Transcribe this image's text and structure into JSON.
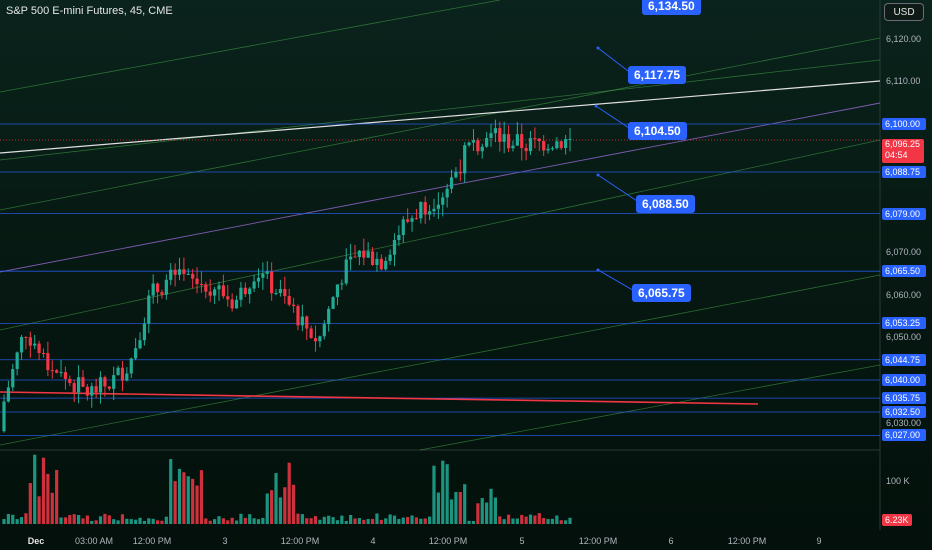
{
  "header": {
    "symbol_title": "S&P 500 E-mini Futures, 45, CME",
    "currency": "USD"
  },
  "price_axis": {
    "ticks": [
      "6,120.00",
      "6,110.00",
      "6,070.00",
      "6,060.00",
      "6,050.00",
      "6,030.00"
    ]
  },
  "levels": [
    {
      "label": "6,100.00",
      "value": 6100.0
    },
    {
      "label": "6,088.75",
      "value": 6088.75
    },
    {
      "label": "6,079.00",
      "value": 6079.0
    },
    {
      "label": "6,065.50",
      "value": 6065.5
    },
    {
      "label": "6,053.25",
      "value": 6053.25
    },
    {
      "label": "6,044.75",
      "value": 6044.75
    },
    {
      "label": "6,040.00",
      "value": 6040.0
    },
    {
      "label": "6,035.75",
      "value": 6035.75
    },
    {
      "label": "6,032.50",
      "value": 6032.5
    },
    {
      "label": "6,027.00",
      "value": 6027.0
    }
  ],
  "last_price": {
    "value": "6,096.25",
    "countdown": "04:54"
  },
  "callouts": [
    {
      "label": "6,134.50",
      "value": 6134.5
    },
    {
      "label": "6,117.75",
      "value": 6117.75
    },
    {
      "label": "6,104.50",
      "value": 6104.5
    },
    {
      "label": "6,088.50",
      "value": 6088.5
    },
    {
      "label": "6,065.75",
      "value": 6065.75
    }
  ],
  "volume_axis": {
    "tick": "100 K",
    "current": "6.23K"
  },
  "time_axis": [
    {
      "label": "Dec",
      "bold": true
    },
    {
      "label": "03:00 AM"
    },
    {
      "label": "12:00 PM"
    },
    {
      "label": "3"
    },
    {
      "label": "12:00 PM"
    },
    {
      "label": "4"
    },
    {
      "label": "12:00 PM"
    },
    {
      "label": "5"
    },
    {
      "label": "12:00 PM"
    },
    {
      "label": "6"
    },
    {
      "label": "12:00 PM"
    },
    {
      "label": "9"
    }
  ],
  "colors": {
    "up": "#22ab94",
    "down": "#f23645",
    "level": "#2962ff",
    "channel": "#4caf50",
    "white_line": "#e0e0e0",
    "purple_line": "#9c6ad8",
    "support_line": "#f23645"
  },
  "chart_data": {
    "type": "candlestick",
    "note_series": "approximate 45-minute closes read from chart",
    "close_path": [
      6035,
      6052,
      6044,
      6040,
      6037,
      6039,
      6044,
      6060,
      6064,
      6063,
      6062,
      6058,
      6066,
      6061,
      6055,
      6049,
      6064,
      6070,
      6068,
      6076,
      6081,
      6084,
      6093,
      6098,
      6096,
      6095,
      6096,
      6096
    ]
  }
}
